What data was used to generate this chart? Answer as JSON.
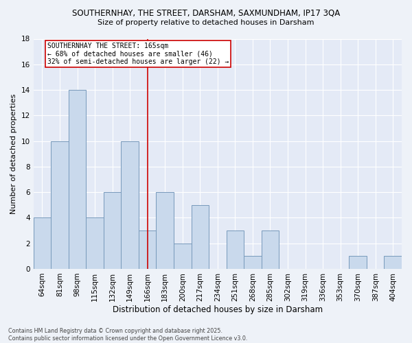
{
  "title_line1": "SOUTHERNHAY, THE STREET, DARSHAM, SAXMUNDHAM, IP17 3QA",
  "title_line2": "Size of property relative to detached houses in Darsham",
  "xlabel": "Distribution of detached houses by size in Darsham",
  "ylabel": "Number of detached properties",
  "categories": [
    "64sqm",
    "81sqm",
    "98sqm",
    "115sqm",
    "132sqm",
    "149sqm",
    "166sqm",
    "183sqm",
    "200sqm",
    "217sqm",
    "234sqm",
    "251sqm",
    "268sqm",
    "285sqm",
    "302sqm",
    "319sqm",
    "336sqm",
    "353sqm",
    "370sqm",
    "387sqm",
    "404sqm"
  ],
  "values": [
    4,
    10,
    14,
    4,
    6,
    10,
    3,
    6,
    2,
    5,
    0,
    3,
    1,
    3,
    0,
    0,
    0,
    0,
    1,
    0,
    1
  ],
  "bar_color": "#c9d9ec",
  "bar_edge_color": "#7799bb",
  "ylim": [
    0,
    18
  ],
  "yticks": [
    0,
    2,
    4,
    6,
    8,
    10,
    12,
    14,
    16,
    18
  ],
  "vline_x_index": 6,
  "vline_color": "#cc0000",
  "annotation_text": "SOUTHERNHAY THE STREET: 165sqm\n← 68% of detached houses are smaller (46)\n32% of semi-detached houses are larger (22) →",
  "annotation_box_edge": "#cc0000",
  "footer_text": "Contains HM Land Registry data © Crown copyright and database right 2025.\nContains public sector information licensed under the Open Government Licence v3.0.",
  "bg_color": "#eef2f8",
  "plot_bg_color": "#e4eaf6",
  "grid_color": "#ffffff",
  "title1_fontsize": 8.5,
  "title2_fontsize": 8.0,
  "ylabel_fontsize": 8.0,
  "xlabel_fontsize": 8.5,
  "tick_fontsize": 7.5,
  "annot_fontsize": 7.0,
  "footer_fontsize": 5.8
}
